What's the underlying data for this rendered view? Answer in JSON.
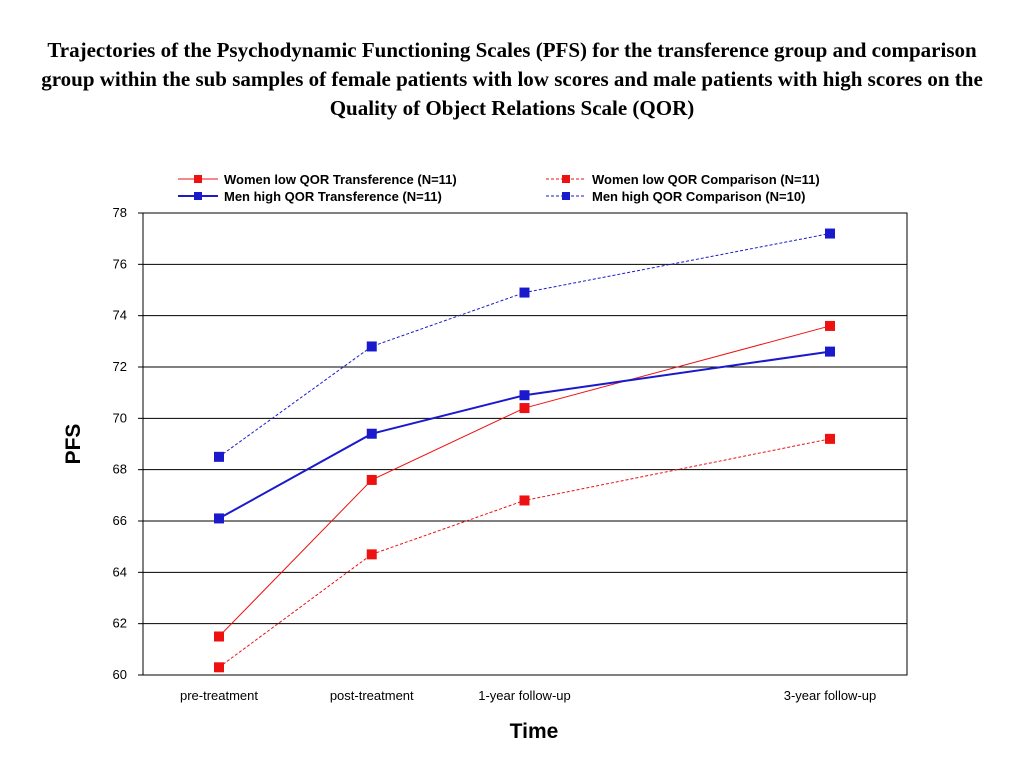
{
  "chart_data": {
    "type": "line",
    "title": "Trajectories of the Psychodynamic Functioning Scales (PFS) for the transference group and comparison group within the sub samples of female patients with low scores and male patients with high scores  on the Quality of Object Relations Scale (QOR)",
    "xlabel": "Time",
    "ylabel": "PFS",
    "categories": [
      "pre-treatment",
      "post-treatment",
      "1-year follow-up",
      "3-year follow-up"
    ],
    "x": [
      0,
      1,
      2,
      4
    ],
    "ylim": [
      60,
      78
    ],
    "yticks": [
      60,
      62,
      64,
      66,
      68,
      70,
      72,
      74,
      76,
      78
    ],
    "grid": "horizontal",
    "legend_position": "top",
    "series": [
      {
        "name": "Women low  QOR Transference (N=11)",
        "values": [
          61.5,
          67.6,
          70.4,
          73.6
        ],
        "color": "#ee1111",
        "style": "solid"
      },
      {
        "name": "Women low  QOR Comparison (N=11)",
        "values": [
          60.3,
          64.7,
          66.8,
          69.2
        ],
        "color": "#ee1111",
        "style": "dashed"
      },
      {
        "name": "Men high  QOR Transference (N=11)",
        "values": [
          66.1,
          69.4,
          70.9,
          72.6
        ],
        "color": "#1a1acc",
        "style": "solid"
      },
      {
        "name": "Men high  QOR Comparison (N=10)",
        "values": [
          68.5,
          72.8,
          74.9,
          77.2
        ],
        "color": "#1a1acc",
        "style": "dashed"
      }
    ]
  }
}
